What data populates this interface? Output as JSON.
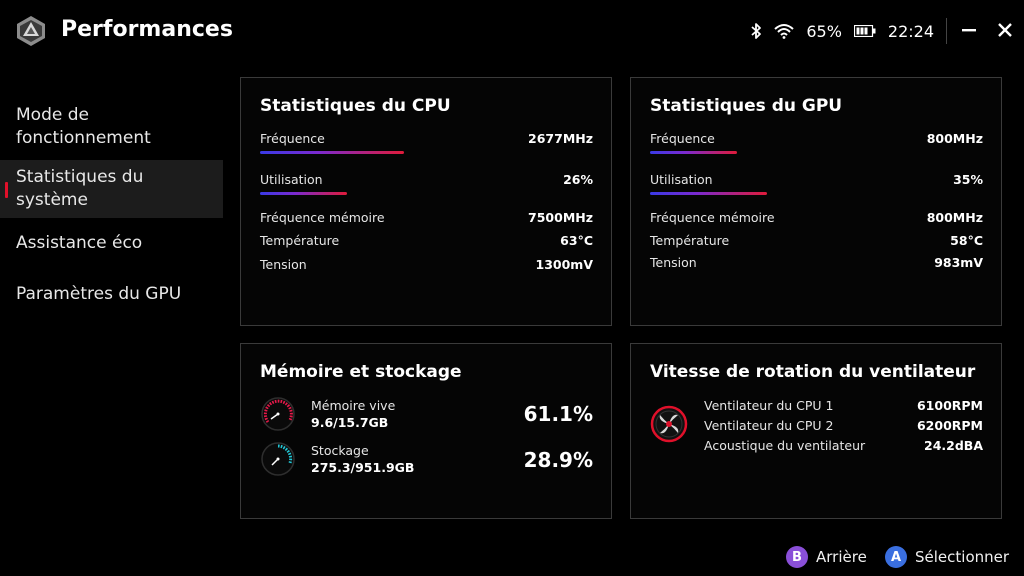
{
  "header": {
    "title": "Performances",
    "battery_percent": "65%",
    "time": "22:24"
  },
  "sidebar": {
    "items": [
      {
        "label": "Mode de fonctionnement"
      },
      {
        "label": "Statistiques du système"
      },
      {
        "label": "Assistance éco"
      },
      {
        "label": "Paramètres du GPU"
      }
    ]
  },
  "cpu": {
    "title": "Statistiques du CPU",
    "frequency_label": "Fréquence",
    "frequency_value": "2677MHz",
    "frequency_fill": 0.43,
    "usage_label": "Utilisation",
    "usage_value": "26%",
    "usage_fill": 0.26,
    "mem_freq_label": "Fréquence mémoire",
    "mem_freq_value": "7500MHz",
    "temp_label": "Température",
    "temp_value": "63°C",
    "voltage_label": "Tension",
    "voltage_value": "1300mV"
  },
  "gpu": {
    "title": "Statistiques du GPU",
    "frequency_label": "Fréquence",
    "frequency_value": "800MHz",
    "frequency_fill": 0.26,
    "usage_label": "Utilisation",
    "usage_value": "35%",
    "usage_fill": 0.35,
    "mem_freq_label": "Fréquence mémoire",
    "mem_freq_value": "800MHz",
    "temp_label": "Température",
    "temp_value": "58°C",
    "voltage_label": "Tension",
    "voltage_value": "983mV"
  },
  "memory": {
    "title": "Mémoire et stockage",
    "ram_label": "Mémoire vive",
    "ram_value": "9.6/15.7GB",
    "ram_percent": "61.1%",
    "storage_label": "Stockage",
    "storage_value": "275.3/951.9GB",
    "storage_percent": "28.9%",
    "colors": {
      "ram": "#e8194a",
      "storage": "#22c7d6"
    }
  },
  "fan": {
    "title": "Vitesse de rotation du ventilateur",
    "cpu1_label": "Ventilateur du CPU 1",
    "cpu1_value": "6100RPM",
    "cpu2_label": "Ventilateur du CPU 2",
    "cpu2_value": "6200RPM",
    "acoustic_label": "Acoustique du ventilateur",
    "acoustic_value": "24.2dBA"
  },
  "footer": {
    "back_key": "B",
    "back_label": "Arrière",
    "select_key": "A",
    "select_label": "Sélectionner",
    "colors": {
      "back": "#8a4fd8",
      "select": "#3a6fe0"
    }
  },
  "icons": [
    "logo-icon",
    "bluetooth-icon",
    "wifi-icon",
    "battery-icon",
    "minimize-icon",
    "close-icon",
    "fan-icon"
  ]
}
